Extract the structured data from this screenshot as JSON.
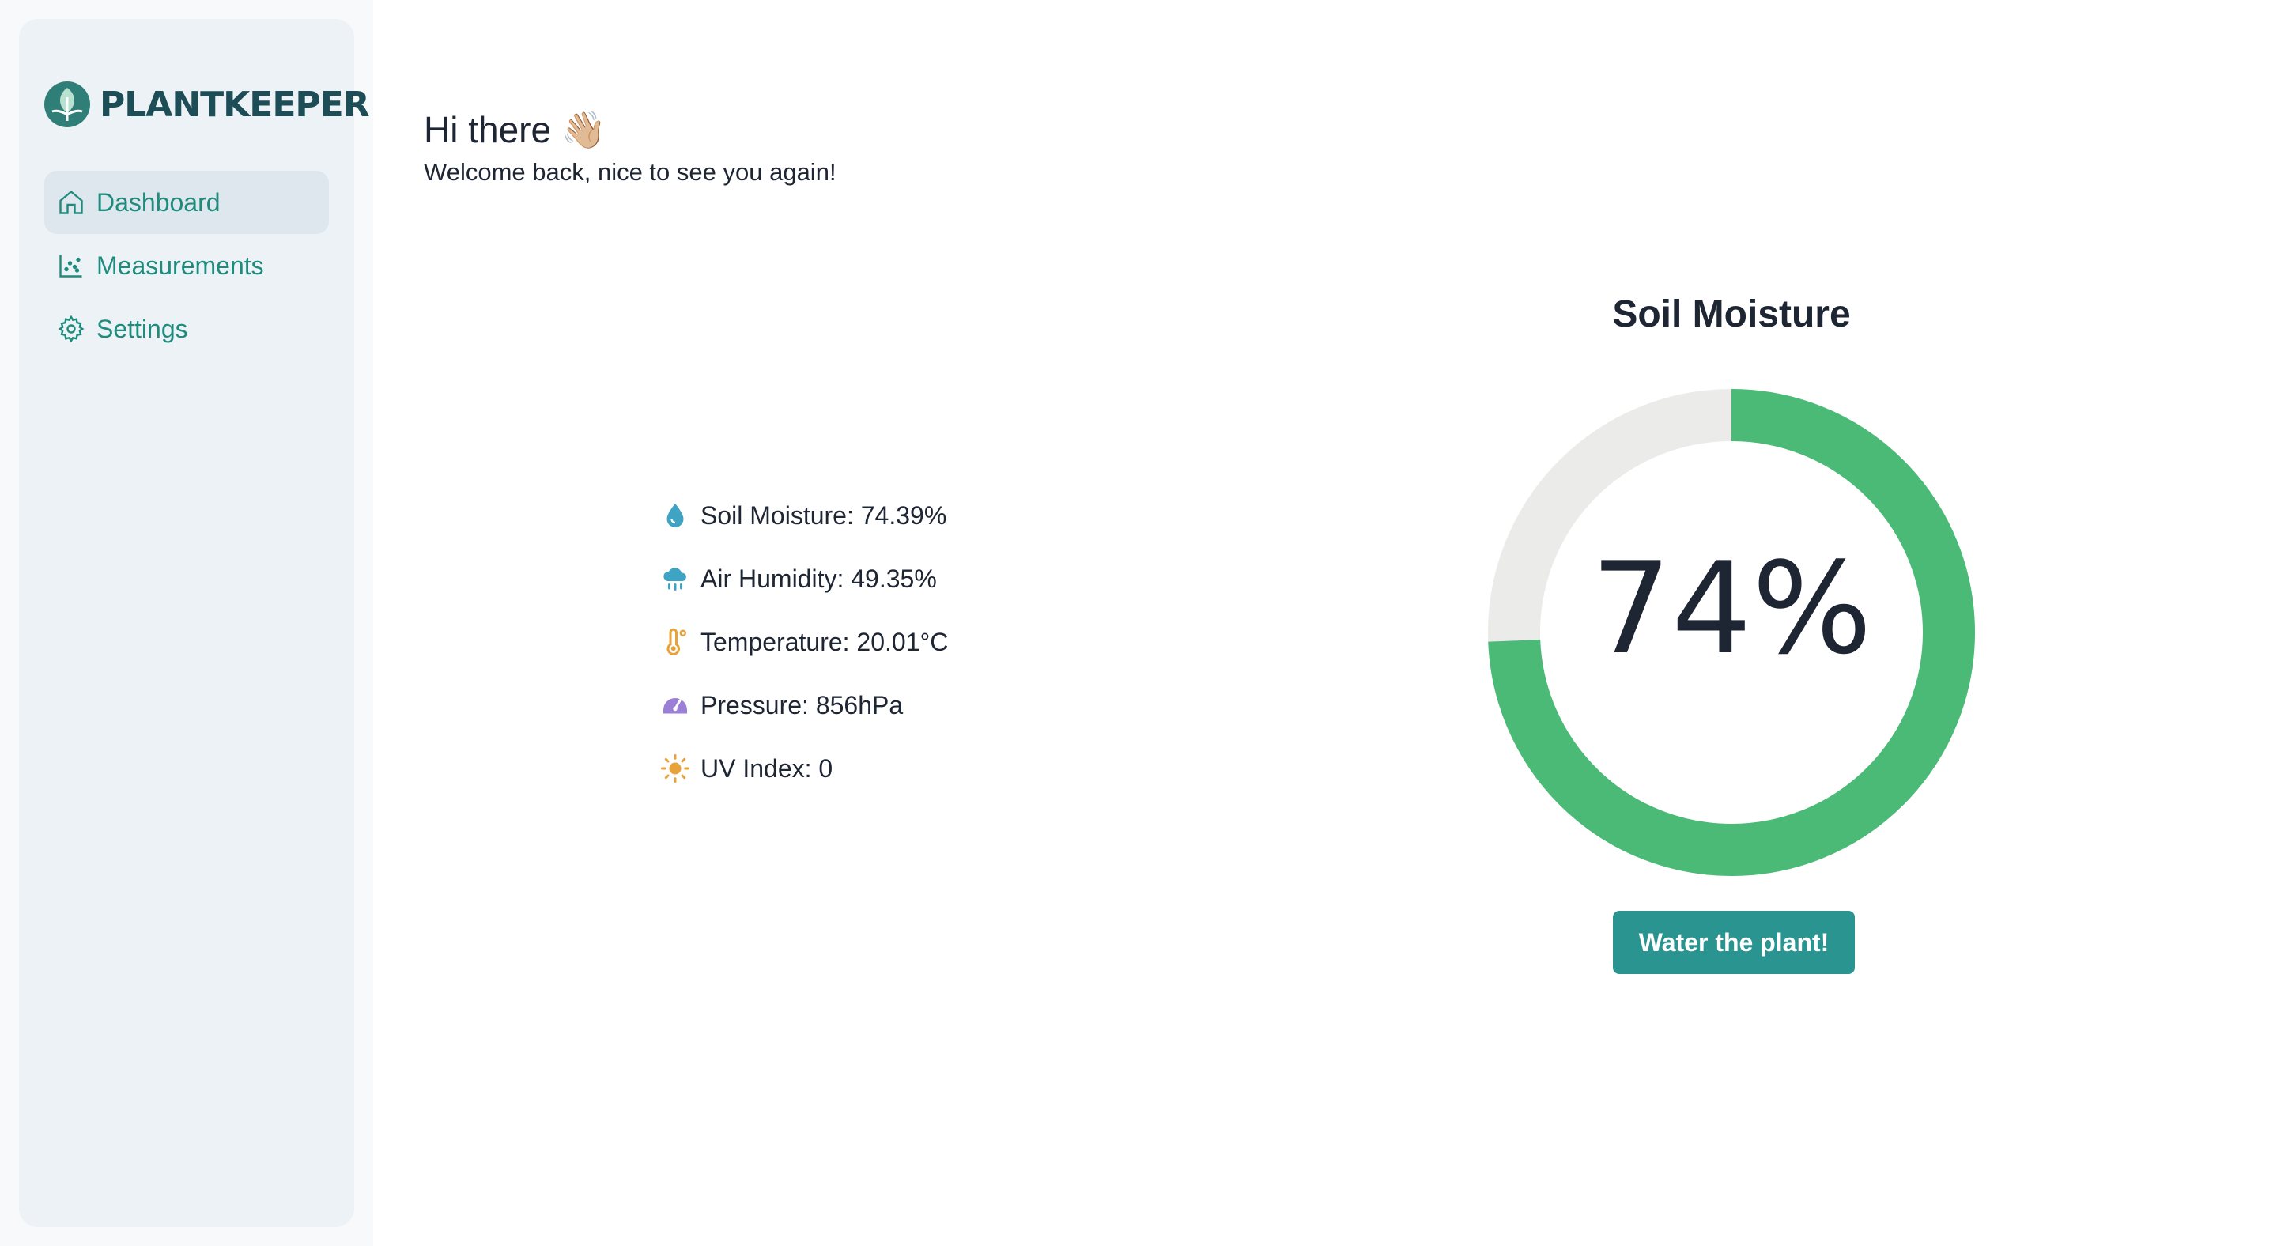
{
  "app": {
    "name": "PLANTKEEPER"
  },
  "sidebar": {
    "items": [
      {
        "label": "Dashboard",
        "icon": "home-icon",
        "active": true
      },
      {
        "label": "Measurements",
        "icon": "scatter-chart-icon",
        "active": false
      },
      {
        "label": "Settings",
        "icon": "gear-icon",
        "active": false
      }
    ]
  },
  "greeting": {
    "title": "Hi there 👋🏼",
    "subtitle": "Welcome back, nice to see you again!"
  },
  "metrics": [
    {
      "label": "Soil Moisture: 74.39%",
      "icon": "water-drop-icon",
      "color": "#3fa3c4"
    },
    {
      "label": "Air Humidity: 49.35%",
      "icon": "cloud-rain-icon",
      "color": "#3fa3c4"
    },
    {
      "label": "Temperature: 20.01°C",
      "icon": "thermometer-icon",
      "color": "#e8a23a"
    },
    {
      "label": "Pressure: 856hPa",
      "icon": "gauge-icon",
      "color": "#9b7fd6"
    },
    {
      "label": "UV Index: 0",
      "icon": "sun-icon",
      "color": "#e8a23a"
    }
  ],
  "chart_data": {
    "type": "pie",
    "title": "Soil Moisture",
    "value": 74.39,
    "max": 100,
    "center_label": "74%",
    "colors": {
      "filled": "#4aba76",
      "empty": "#ebebea"
    }
  },
  "actions": {
    "water_label": "Water the plant!"
  },
  "colors": {
    "accent": "#1f8b7c",
    "button": "#2a9490",
    "brand": "#1d4d57"
  }
}
